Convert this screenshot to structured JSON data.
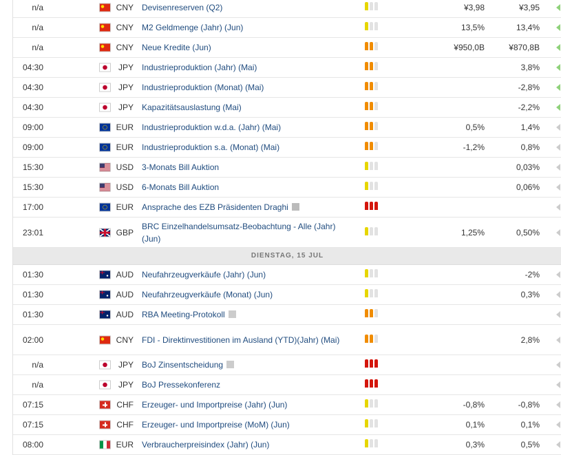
{
  "sections": [
    {
      "rows": [
        {
          "time": "n/a",
          "currency": "CNY",
          "event": "Devisenreserven (Q2)",
          "importance": 1,
          "forecast": "¥3,98",
          "previous": "¥3,95"
        },
        {
          "time": "n/a",
          "currency": "CNY",
          "event": "M2 Geldmenge (Jahr) (Jun)",
          "importance": 1,
          "forecast": "13,5%",
          "previous": "13,4%"
        },
        {
          "time": "n/a",
          "currency": "CNY",
          "event": "Neue Kredite (Jun)",
          "importance": 2,
          "forecast": "¥950,0B",
          "previous": "¥870,8B"
        },
        {
          "time": "04:30",
          "currency": "JPY",
          "event": "Industrieproduktion (Jahr) (Mai)",
          "importance": 2,
          "previous": "3,8%"
        },
        {
          "time": "04:30",
          "currency": "JPY",
          "event": "Industrieproduktion (Monat) (Mai)",
          "importance": 2,
          "previous": "-2,8%"
        },
        {
          "time": "04:30",
          "currency": "JPY",
          "event": "Kapazitätsauslastung (Mai)",
          "importance": 2,
          "previous": "-2,2%"
        },
        {
          "time": "09:00",
          "currency": "EUR",
          "event": "Industrieproduktion w.d.a. (Jahr) (Mai)",
          "importance": 2,
          "forecast": "0,5%",
          "previous": "1,4%"
        },
        {
          "time": "09:00",
          "currency": "EUR",
          "event": "Industrieproduktion s.a. (Monat) (Mai)",
          "importance": 2,
          "forecast": "-1,2%",
          "previous": "0,8%"
        },
        {
          "time": "15:30",
          "currency": "USD",
          "event": "3-Monats Bill Auktion",
          "importance": 1,
          "previous": "0,03%"
        },
        {
          "time": "15:30",
          "currency": "USD",
          "event": "6-Monats Bill Auktion",
          "importance": 1,
          "previous": "0,06%"
        },
        {
          "time": "17:00",
          "currency": "EUR",
          "event": "Ansprache des EZB Präsidenten Draghi",
          "importance": 3
        },
        {
          "time": "23:01",
          "currency": "GBP",
          "event": "BRC Einzelhandelsumsatz-Beobachtung - Alle (Jahr) (Jun)",
          "importance": 1,
          "forecast": "1,25%",
          "previous": "0,50%"
        }
      ]
    },
    {
      "heading": "DIENSTAG, 15 JUL",
      "rows": [
        {
          "time": "01:30",
          "currency": "AUD",
          "event": "Neufahrzeugverkäufe (Jahr) (Jun)",
          "importance": 1,
          "previous": "-2%"
        },
        {
          "time": "01:30",
          "currency": "AUD",
          "event": "Neufahrzeugverkäufe (Monat) (Jun)",
          "importance": 1,
          "previous": "0,3%"
        },
        {
          "time": "01:30",
          "currency": "AUD",
          "event": "RBA Meeting-Protokoll",
          "importance": 2
        },
        {
          "time": "02:00",
          "currency": "CNY",
          "event": "FDI - Direktinvestitionen im Ausland (YTD)(Jahr) (Mai)",
          "importance": 2,
          "previous": "2,8%"
        },
        {
          "time": "n/a",
          "currency": "JPY",
          "event": "BoJ Zinsentscheidung",
          "importance": 3
        },
        {
          "time": "n/a",
          "currency": "JPY",
          "event": "BoJ Pressekonferenz",
          "importance": 3
        },
        {
          "time": "07:15",
          "currency": "CHF",
          "event": "Erzeuger- und Importpreise (Jahr) (Jun)",
          "importance": 1,
          "forecast": "-0,8%",
          "previous": "-0,8%"
        },
        {
          "time": "07:15",
          "currency": "CHF",
          "event": "Erzeuger- und Importpreise (MoM) (Jun)",
          "importance": 1,
          "forecast": "0,1%",
          "previous": "0,1%"
        },
        {
          "time": "08:00",
          "currency": "EUR",
          "event": "Verbraucherpreisindex (Jahr) (Jun)",
          "importance": 1,
          "forecast": "0,3%",
          "previous": "0,5%"
        }
      ]
    }
  ]
}
